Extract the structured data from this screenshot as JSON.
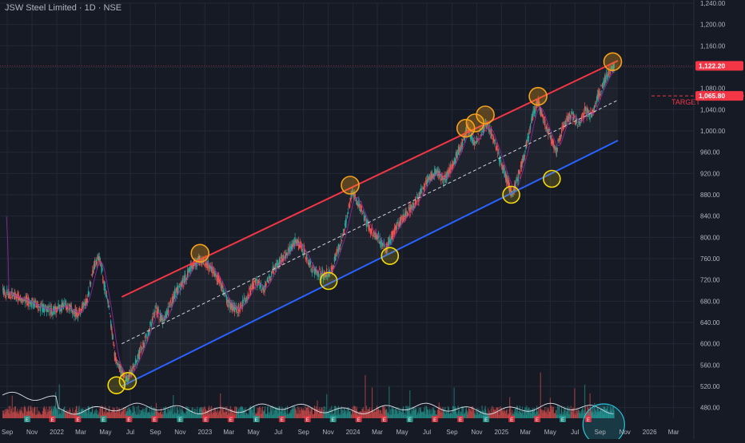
{
  "header": {
    "title": "JSW Steel Limited · 1D · NSE"
  },
  "colors": {
    "background": "#161a25",
    "grid": "#242836",
    "up": "#26a69a",
    "down": "#ef5350",
    "resistance": "#f23645",
    "support": "#2962ff",
    "midline": "#d1d4dc",
    "top_touch": "#f7a21b",
    "bottom_touch": "#f5d90a",
    "ma": "#9c27b0",
    "volume_line": "#e0e3eb",
    "highlight": "#26c6da"
  },
  "chart_data": {
    "type": "candlestick",
    "title": "",
    "xlabel": "",
    "ylabel": "",
    "ylim": [
      460,
      1240
    ],
    "y_ticks": [
      "480.00",
      "520.00",
      "560.00",
      "600.00",
      "640.00",
      "680.00",
      "720.00",
      "760.00",
      "800.00",
      "840.00",
      "880.00",
      "920.00",
      "960.00",
      "1,000.00",
      "1,040.00",
      "1,080.00",
      "1,120.00",
      "1,160.00",
      "1,200.00",
      "1,240.00"
    ],
    "y_tick_values": [
      480,
      520,
      560,
      600,
      640,
      680,
      720,
      760,
      800,
      840,
      880,
      920,
      960,
      1000,
      1040,
      1080,
      1120,
      1160,
      1200,
      1240
    ],
    "x_ticks": [
      "Sep",
      "Nov",
      "2022",
      "Mar",
      "May",
      "Jul",
      "Sep",
      "Nov",
      "2023",
      "Mar",
      "May",
      "Jul",
      "Sep",
      "Nov",
      "2024",
      "Mar",
      "May",
      "Jul",
      "Sep",
      "Nov",
      "2025",
      "Mar",
      "May",
      "Jul",
      "Sep",
      "Nov",
      "2026",
      "Mar"
    ],
    "x_tick_dates": [
      "2021-09",
      "2021-11",
      "2022-01",
      "2022-03",
      "2022-05",
      "2022-07",
      "2022-09",
      "2022-11",
      "2023-01",
      "2023-03",
      "2023-05",
      "2023-07",
      "2023-09",
      "2023-11",
      "2024-01",
      "2024-03",
      "2024-05",
      "2024-07",
      "2024-09",
      "2024-11",
      "2025-01",
      "2025-03",
      "2025-05",
      "2025-07",
      "2025-09",
      "2025-11",
      "2026-01",
      "2026-03"
    ],
    "price_path": [
      [
        "2021-08-20",
        700
      ],
      [
        "2021-09-15",
        690
      ],
      [
        "2021-10-15",
        682
      ],
      [
        "2021-11-20",
        668
      ],
      [
        "2021-12-20",
        662
      ],
      [
        "2022-01-20",
        672
      ],
      [
        "2022-02-20",
        655
      ],
      [
        "2022-03-15",
        680
      ],
      [
        "2022-04-01",
        742
      ],
      [
        "2022-04-15",
        765
      ],
      [
        "2022-04-25",
        720
      ],
      [
        "2022-05-10",
        660
      ],
      [
        "2022-05-25",
        570
      ],
      [
        "2022-06-20",
        530
      ],
      [
        "2022-07-01",
        545
      ],
      [
        "2022-07-20",
        575
      ],
      [
        "2022-08-15",
        625
      ],
      [
        "2022-09-01",
        665
      ],
      [
        "2022-09-20",
        640
      ],
      [
        "2022-10-15",
        690
      ],
      [
        "2022-11-10",
        720
      ],
      [
        "2022-12-05",
        752
      ],
      [
        "2022-12-25",
        758
      ],
      [
        "2023-01-15",
        742
      ],
      [
        "2023-02-05",
        720
      ],
      [
        "2023-02-25",
        678
      ],
      [
        "2023-03-20",
        662
      ],
      [
        "2023-04-10",
        682
      ],
      [
        "2023-05-05",
        718
      ],
      [
        "2023-05-25",
        700
      ],
      [
        "2023-06-20",
        742
      ],
      [
        "2023-07-20",
        768
      ],
      [
        "2023-08-10",
        792
      ],
      [
        "2023-08-30",
        778
      ],
      [
        "2023-09-20",
        742
      ],
      [
        "2023-10-20",
        728
      ],
      [
        "2023-11-10",
        742
      ],
      [
        "2023-12-10",
        812
      ],
      [
        "2023-12-28",
        882
      ],
      [
        "2024-01-12",
        868
      ],
      [
        "2024-02-05",
        822
      ],
      [
        "2024-03-01",
        798
      ],
      [
        "2024-03-22",
        778
      ],
      [
        "2024-04-15",
        818
      ],
      [
        "2024-05-10",
        842
      ],
      [
        "2024-06-05",
        868
      ],
      [
        "2024-07-01",
        905
      ],
      [
        "2024-07-25",
        925
      ],
      [
        "2024-08-10",
        905
      ],
      [
        "2024-09-01",
        935
      ],
      [
        "2024-09-25",
        975
      ],
      [
        "2024-10-08",
        1008
      ],
      [
        "2024-10-25",
        975
      ],
      [
        "2024-11-10",
        998
      ],
      [
        "2024-11-28",
        1012
      ],
      [
        "2024-12-20",
        965
      ],
      [
        "2025-01-15",
        905
      ],
      [
        "2025-01-28",
        882
      ],
      [
        "2025-02-10",
        912
      ],
      [
        "2025-03-01",
        965
      ],
      [
        "2025-03-20",
        1035
      ],
      [
        "2025-04-01",
        1052
      ],
      [
        "2025-04-15",
        1018
      ],
      [
        "2025-05-01",
        988
      ],
      [
        "2025-05-15",
        962
      ],
      [
        "2025-06-01",
        1008
      ],
      [
        "2025-06-20",
        1032
      ],
      [
        "2025-07-10",
        1012
      ],
      [
        "2025-07-25",
        1038
      ],
      [
        "2025-08-10",
        1028
      ],
      [
        "2025-08-28",
        1068
      ],
      [
        "2025-09-15",
        1098
      ],
      [
        "2025-09-25",
        1112
      ],
      [
        "2025-10-05",
        1122
      ]
    ],
    "last_price": "1,122.20",
    "target_price": "1,065.80",
    "target_value": 1065.8,
    "target_label": "TARGET",
    "channel": {
      "resistance": [
        [
          "2022-06-10",
          688
        ],
        [
          "2025-10-15",
          1132
        ]
      ],
      "midline": [
        [
          "2022-06-10",
          600
        ],
        [
          "2025-10-15",
          1058
        ]
      ],
      "support": [
        [
          "2022-06-10",
          520
        ],
        [
          "2025-10-15",
          982
        ]
      ]
    },
    "top_touches": [
      [
        "2022-12-20",
        770
      ],
      [
        "2023-12-25",
        898
      ],
      [
        "2024-10-05",
        1005
      ],
      [
        "2024-10-28",
        1015
      ],
      [
        "2024-11-22",
        1030
      ],
      [
        "2025-04-01",
        1065
      ],
      [
        "2025-10-02",
        1130
      ]
    ],
    "bottom_touches": [
      [
        "2022-05-28",
        522
      ],
      [
        "2022-06-25",
        530
      ],
      [
        "2023-11-02",
        718
      ],
      [
        "2024-04-01",
        765
      ],
      [
        "2025-01-25",
        880
      ],
      [
        "2025-05-05",
        910
      ]
    ],
    "volume_markers": [
      "E",
      "E",
      "E",
      "E",
      "E",
      "E",
      "E",
      "E",
      "E",
      "E",
      "E",
      "E",
      "E",
      "E",
      "E",
      "E",
      "E",
      "E",
      "E",
      "E",
      "E",
      "E",
      "E"
    ],
    "volume_highlight_date": "2025-09-10"
  }
}
